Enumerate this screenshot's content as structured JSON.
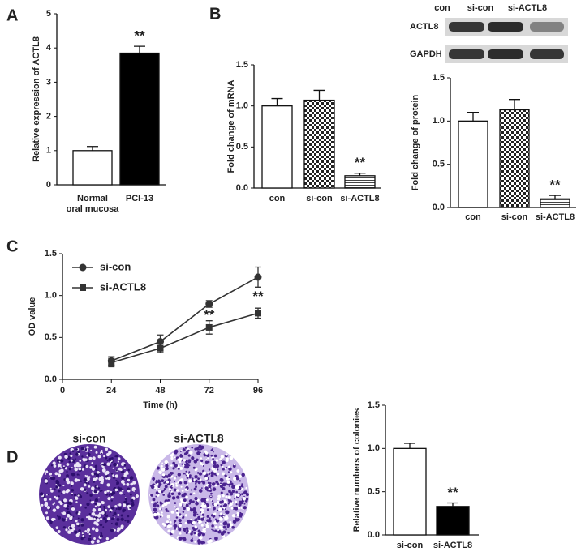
{
  "chart_data": [
    {
      "type": "bar",
      "panel": "A",
      "ylabel": "Relative expression of ACTL8",
      "categories": [
        "Normal\noral mucosa",
        "PCI-13"
      ],
      "values": [
        1.0,
        3.85
      ],
      "errors": [
        0.12,
        0.2
      ],
      "colors": [
        "#ffffff",
        "#000000"
      ],
      "patterns": [
        "none",
        "none"
      ],
      "ylim": [
        0,
        5
      ],
      "yticks": [
        0,
        1,
        2,
        3,
        4,
        5
      ],
      "annotations": [
        {
          "text": "**",
          "category": 1
        }
      ]
    },
    {
      "type": "bar",
      "panel": "B",
      "ylabel": "Fold change of mRNA",
      "categories": [
        "con",
        "si-con",
        "si-ACTL8"
      ],
      "values": [
        1.0,
        1.07,
        0.15
      ],
      "errors": [
        0.09,
        0.12,
        0.03
      ],
      "colors": [
        "#ffffff",
        "#ffffff",
        "#ffffff"
      ],
      "patterns": [
        "none",
        "checker",
        "hstripes"
      ],
      "ylim": [
        0,
        1.5
      ],
      "yticks": [
        {
          "value": 0,
          "label": "0.0"
        },
        0.5,
        {
          "value": 1,
          "label": "1.0"
        },
        1.5
      ],
      "annotations": [
        {
          "text": "**",
          "category": 2
        }
      ]
    },
    {
      "type": "bar",
      "ylabel": "Fold change of protein",
      "categories": [
        "con",
        "si-con",
        "si-ACTL8"
      ],
      "values": [
        1.0,
        1.13,
        0.1
      ],
      "errors": [
        0.1,
        0.12,
        0.04
      ],
      "colors": [
        "#ffffff",
        "#ffffff",
        "#ffffff"
      ],
      "patterns": [
        "none",
        "checker",
        "hstripes"
      ],
      "ylim": [
        0,
        1.5
      ],
      "yticks": [
        {
          "value": 0,
          "label": "0.0"
        },
        0.5,
        {
          "value": 1,
          "label": "1.0"
        },
        1.5
      ],
      "annotations": [
        {
          "text": "**",
          "category": 2
        }
      ],
      "blot": {
        "rows": [
          "ACTL8",
          "GAPDH"
        ],
        "lanes": [
          "con",
          "si-con",
          "si-ACTL8"
        ]
      }
    },
    {
      "type": "line",
      "panel": "C",
      "xlabel": "Time (h)",
      "ylabel": "OD value",
      "x": [
        24,
        48,
        72,
        96
      ],
      "series": [
        {
          "name": "si-con",
          "color": "#333333",
          "marker": "circle",
          "values": [
            0.22,
            0.45,
            0.9,
            1.22
          ],
          "errors": [
            0.05,
            0.08,
            0.04,
            0.12
          ]
        },
        {
          "name": "si-ACTL8",
          "color": "#333333",
          "marker": "square",
          "values": [
            0.2,
            0.37,
            0.62,
            0.79
          ],
          "errors": [
            0.05,
            0.05,
            0.08,
            0.06
          ]
        }
      ],
      "xlim": [
        0,
        96
      ],
      "xticks": [
        0,
        24,
        48,
        72,
        96
      ],
      "ylim": [
        0,
        1.5
      ],
      "yticks": [
        {
          "value": 0,
          "label": "0.0"
        },
        0.5,
        {
          "value": 1,
          "label": "1.0"
        },
        1.5
      ],
      "legend": "upper left",
      "annotations": [
        {
          "text": "**",
          "x": 72,
          "y": 0.76
        },
        {
          "text": "**",
          "x": 96,
          "y": 0.98
        }
      ]
    },
    {
      "type": "bar",
      "panel": "D",
      "ylabel": "Relative numbers of colonies",
      "categories": [
        "si-con",
        "si-ACTL8"
      ],
      "values": [
        1.0,
        0.33
      ],
      "errors": [
        0.06,
        0.04
      ],
      "colors": [
        "#ffffff",
        "#000000"
      ],
      "patterns": [
        "none",
        "none"
      ],
      "ylim": [
        0,
        1.5
      ],
      "yticks": [
        {
          "value": 0,
          "label": "0.0"
        },
        0.5,
        {
          "value": 1,
          "label": "1.0"
        },
        1.5
      ],
      "annotations": [
        {
          "text": "**",
          "category": 1
        }
      ],
      "images": [
        "si-con",
        "si-ACTL8"
      ]
    }
  ]
}
